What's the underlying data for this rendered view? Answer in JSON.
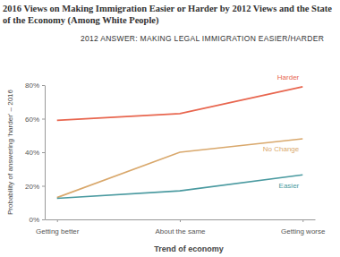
{
  "chart_data": {
    "type": "line",
    "title": "2016 Views on Making Immigration Easier or Harder by 2012 Views and the State of the Economy (Among White People)",
    "subtitle": "2012 ANSWER: MAKING LEGAL IMMIGRATION EASIER/HARDER",
    "x_label": "Trend of economy",
    "y_label": "Probability of answering 'harder' – 2016",
    "categories": [
      "Getting better",
      "About the same",
      "Getting worse"
    ],
    "series": [
      {
        "name": "Harder",
        "color": "#e8664f",
        "values": [
          59,
          63,
          79
        ]
      },
      {
        "name": "No Change",
        "color": "#d9a86c",
        "values": [
          13,
          40,
          48
        ]
      },
      {
        "name": "Easier",
        "color": "#4a9aa0",
        "values": [
          12.5,
          17,
          26.5
        ]
      }
    ],
    "ylim": [
      0,
      80
    ],
    "yticks": [
      {
        "value": 0,
        "label": "0%"
      },
      {
        "value": 20,
        "label": "20%"
      },
      {
        "value": 40,
        "label": "40%"
      },
      {
        "value": 60,
        "label": "60%"
      },
      {
        "value": 80,
        "label": "80%"
      }
    ],
    "grid": false
  }
}
